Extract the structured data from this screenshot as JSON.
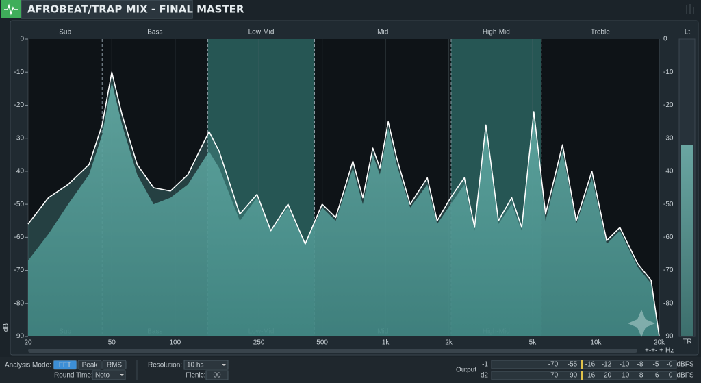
{
  "header": {
    "title": "AFROBEAT/TRAP MIX - FINAL MASTER"
  },
  "analyzer": {
    "y_label": "dB",
    "x_unit": "Hz",
    "log_x": true,
    "xlim": [
      20,
      20000
    ],
    "ylim": [
      0,
      -90
    ],
    "xticks": [
      20,
      50,
      100,
      250,
      500,
      {
        "value": 1000,
        "label": "1k"
      },
      {
        "value": 2000,
        "label": "2k"
      },
      {
        "value": 5000,
        "label": "5k"
      },
      {
        "value": 10000,
        "label": "10k"
      },
      {
        "value": 20000,
        "label": "20k"
      }
    ],
    "yticks": [
      0,
      -10,
      -20,
      -30,
      -40,
      -50,
      -60,
      -70,
      -80,
      -90
    ],
    "bands": [
      {
        "name": "Sub",
        "from": 20,
        "to": 45,
        "highlighted": false,
        "bottom_label": true
      },
      {
        "name": "Bass",
        "from": 45,
        "to": 143,
        "highlighted": false,
        "bottom_label": true
      },
      {
        "name": "Low-Mid",
        "from": 143,
        "to": 460,
        "highlighted": true,
        "bottom_label": true
      },
      {
        "name": "Mid",
        "from": 460,
        "to": 2050,
        "highlighted": false,
        "bottom_label": true
      },
      {
        "name": "High-Mid",
        "from": 2050,
        "to": 5500,
        "highlighted": true,
        "bottom_label": true
      },
      {
        "name": "Treble",
        "from": 5500,
        "to": 20000,
        "highlighted": false,
        "bottom_label": false
      }
    ],
    "spectrum": {
      "x": [
        20,
        25,
        31,
        39,
        45,
        50,
        56,
        66,
        79,
        95,
        115,
        145,
        162,
        203,
        245,
        285,
        344,
        415,
        500,
        580,
        700,
        780,
        870,
        940,
        1030,
        1130,
        1310,
        1580,
        1760,
        2040,
        2370,
        2650,
        3000,
        3440,
        3980,
        4440,
        5070,
        5760,
        6940,
        8060,
        9570,
        11250,
        13000,
        15800,
        18300,
        20000
      ],
      "peak": [
        -56,
        -48,
        -44,
        -38,
        -26,
        -10,
        -23,
        -38,
        -45,
        -46,
        -41,
        -28,
        -34,
        -53,
        -47,
        -58,
        -50,
        -62,
        -50,
        -54,
        -37,
        -48,
        -33,
        -39,
        -25,
        -36,
        -50,
        -42,
        -55,
        -48,
        -42,
        -57,
        -26,
        -55,
        -48,
        -57,
        -22,
        -53,
        -32,
        -55,
        -40,
        -61,
        -57,
        -68,
        -73,
        -90
      ],
      "average": [
        -67,
        -59,
        -50,
        -41,
        -29,
        -13,
        -26,
        -41,
        -50,
        -48,
        -44,
        -34,
        -39,
        -55,
        -48,
        -58,
        -51,
        -62,
        -51,
        -55,
        -39,
        -50,
        -35,
        -41,
        -27,
        -38,
        -51,
        -44,
        -56,
        -50,
        -44,
        -58,
        -28,
        -56,
        -50,
        -58,
        -24,
        -55,
        -34,
        -56,
        -42,
        -62,
        -58,
        -69,
        -74,
        -90
      ]
    }
  },
  "meter": {
    "top_label": "Lt",
    "bottom_label": "TR",
    "level": -32
  },
  "controls": {
    "analysis_mode_label": "Analysis Mode:",
    "modes": [
      "FFT",
      "Peak",
      "RMS"
    ],
    "active_mode": 0,
    "round_time_label": "Round Time:",
    "round_time": "Noto",
    "resolution_label": "Resolution:",
    "resolution": "10 hs",
    "fienic_label": "Fienic:",
    "fienic": "00"
  },
  "output": {
    "label": "Output",
    "unit": "dBFS",
    "channels": [
      {
        "name": "-1",
        "scale": [
          "-70",
          "-55",
          "-16",
          "-12",
          "-10",
          "-8",
          "-5",
          "-0"
        ]
      },
      {
        "name": "d2",
        "scale": [
          "-70",
          "-90",
          "-16",
          "-20",
          "-10",
          "-8",
          "-6",
          "-0"
        ]
      }
    ]
  }
}
